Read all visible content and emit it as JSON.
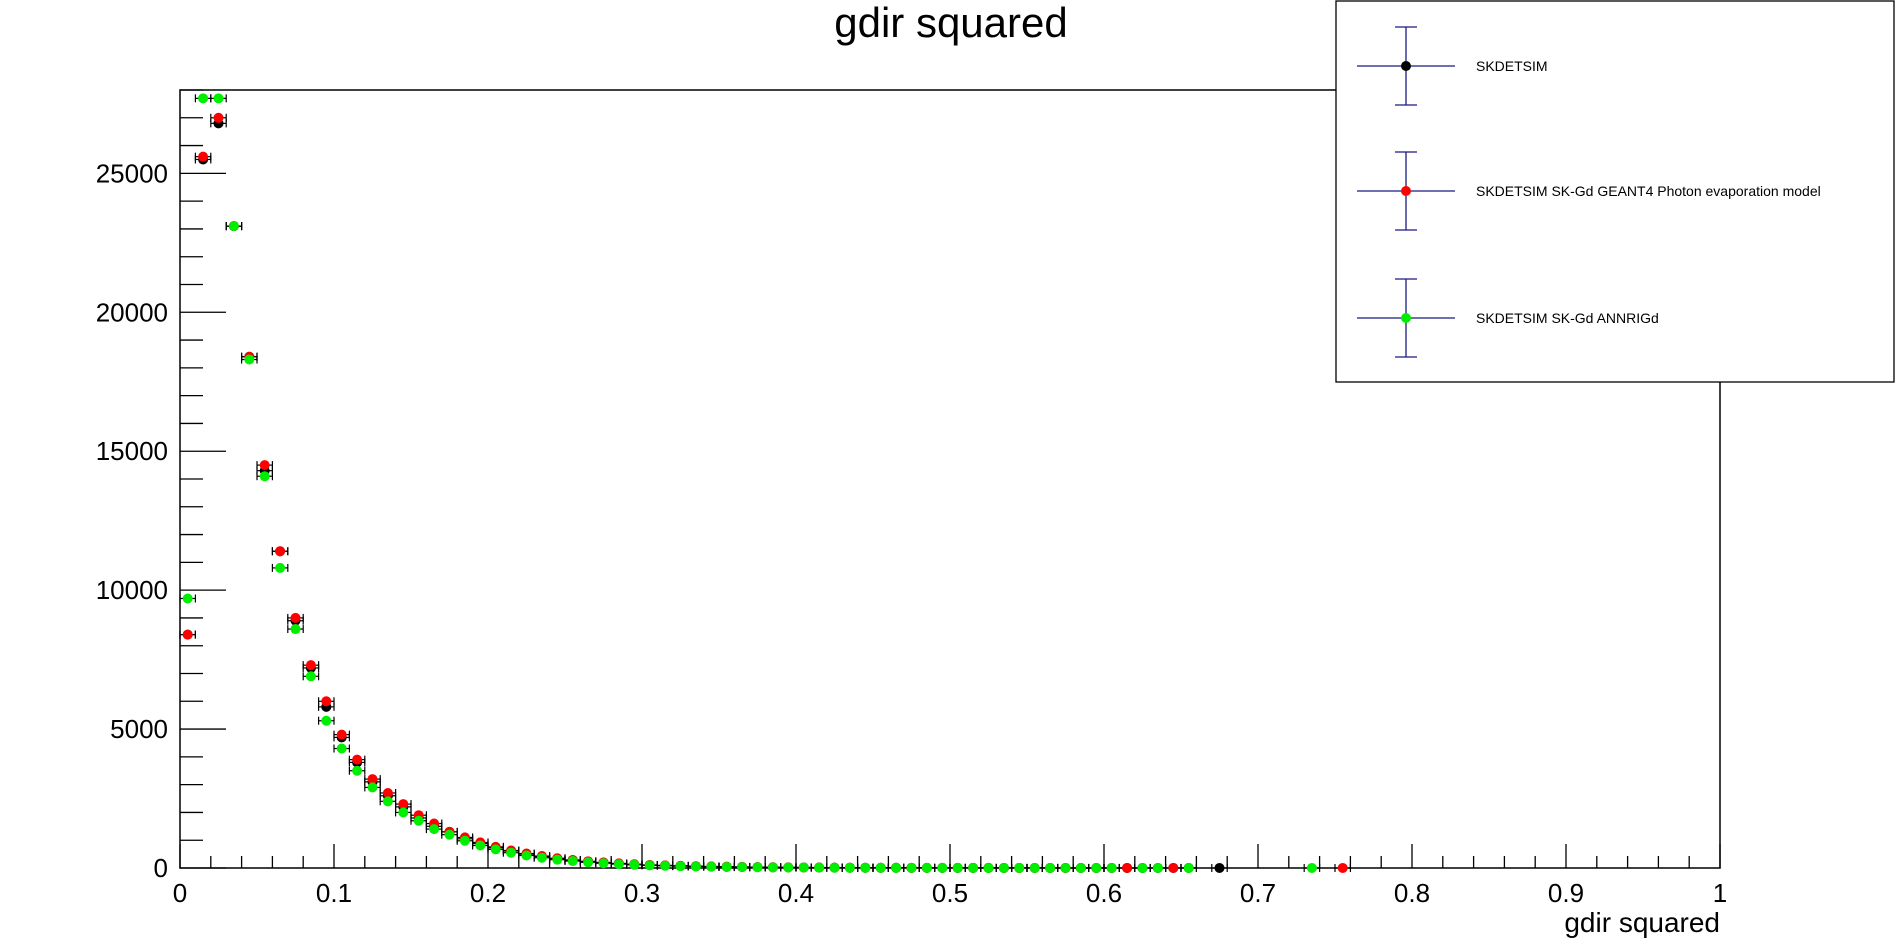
{
  "chart_data": {
    "type": "scatter",
    "title": "gdir squared",
    "xlabel": "gdir squared",
    "ylabel": "",
    "xlim": [
      0,
      1
    ],
    "ylim": [
      0,
      28000
    ],
    "x_ticks": [
      0,
      0.1,
      0.2,
      0.3,
      0.4,
      0.5,
      0.6,
      0.7,
      0.8,
      0.9,
      1
    ],
    "x_tick_labels": [
      "0",
      "0.1",
      "0.2",
      "0.3",
      "0.4",
      "0.5",
      "0.6",
      "0.7",
      "0.8",
      "0.9",
      "1"
    ],
    "y_ticks": [
      0,
      5000,
      10000,
      15000,
      20000,
      25000
    ],
    "y_tick_labels": [
      "0",
      "5000",
      "10000",
      "15000",
      "20000",
      "25000"
    ],
    "grid": false,
    "legend_position": "top-right",
    "bin_width": 0.01,
    "series": [
      {
        "name": "SKDETSIM",
        "color": "#000000",
        "x": [
          0.005,
          0.015,
          0.025,
          0.035,
          0.045,
          0.055,
          0.065,
          0.075,
          0.085,
          0.095,
          0.105,
          0.115,
          0.125,
          0.135,
          0.145,
          0.155,
          0.165,
          0.175,
          0.185,
          0.195,
          0.205,
          0.215,
          0.225,
          0.235,
          0.245,
          0.255,
          0.265,
          0.275,
          0.285,
          0.295,
          0.305,
          0.315,
          0.325,
          0.335,
          0.345,
          0.355,
          0.365,
          0.375,
          0.385,
          0.395,
          0.405,
          0.415,
          0.425,
          0.435,
          0.445,
          0.455,
          0.465,
          0.475,
          0.485,
          0.495,
          0.505,
          0.515,
          0.525,
          0.535,
          0.545,
          0.555,
          0.565,
          0.575,
          0.585,
          0.595,
          0.605,
          0.615,
          0.625,
          0.635,
          0.645,
          0.655,
          0.675
        ],
        "y": [
          8400,
          25500,
          26800,
          23100,
          18400,
          14300,
          11400,
          8900,
          7200,
          5800,
          4700,
          3800,
          3100,
          2600,
          2200,
          1800,
          1500,
          1300,
          1050,
          880,
          730,
          610,
          500,
          410,
          340,
          280,
          235,
          195,
          160,
          130,
          105,
          90,
          75,
          62,
          52,
          44,
          37,
          31,
          26,
          22,
          19,
          16,
          13,
          11,
          9,
          8,
          7,
          6,
          5,
          4,
          3,
          3,
          3,
          2,
          2,
          2,
          2,
          1,
          1,
          1,
          1,
          1,
          1,
          1,
          1,
          1,
          1
        ]
      },
      {
        "name": "SKDETSIM SK-Gd GEANT4 Photon evaporation model",
        "color": "#ff0000",
        "x": [
          0.005,
          0.015,
          0.025,
          0.035,
          0.045,
          0.055,
          0.065,
          0.075,
          0.085,
          0.095,
          0.105,
          0.115,
          0.125,
          0.135,
          0.145,
          0.155,
          0.165,
          0.175,
          0.185,
          0.195,
          0.205,
          0.215,
          0.225,
          0.235,
          0.245,
          0.255,
          0.265,
          0.275,
          0.285,
          0.295,
          0.305,
          0.315,
          0.325,
          0.335,
          0.345,
          0.355,
          0.365,
          0.375,
          0.385,
          0.395,
          0.405,
          0.415,
          0.425,
          0.435,
          0.445,
          0.455,
          0.465,
          0.475,
          0.485,
          0.495,
          0.505,
          0.515,
          0.525,
          0.535,
          0.545,
          0.555,
          0.565,
          0.575,
          0.585,
          0.595,
          0.605,
          0.615,
          0.645,
          0.755
        ],
        "y": [
          8400,
          25600,
          27000,
          23100,
          18400,
          14500,
          11400,
          9000,
          7300,
          6000,
          4800,
          3900,
          3200,
          2700,
          2300,
          1900,
          1600,
          1300,
          1100,
          920,
          760,
          630,
          520,
          430,
          350,
          290,
          240,
          200,
          165,
          135,
          110,
          93,
          78,
          65,
          54,
          46,
          38,
          32,
          27,
          23,
          19,
          16,
          14,
          12,
          10,
          8,
          7,
          6,
          5,
          4,
          4,
          3,
          3,
          2,
          2,
          2,
          2,
          1,
          1,
          1,
          1,
          1,
          1,
          1
        ]
      },
      {
        "name": "SKDETSIM SK-Gd ANNRIGd",
        "color": "#00ee00",
        "x": [
          0.005,
          0.015,
          0.025,
          0.035,
          0.045,
          0.055,
          0.065,
          0.075,
          0.085,
          0.095,
          0.105,
          0.115,
          0.125,
          0.135,
          0.145,
          0.155,
          0.165,
          0.175,
          0.185,
          0.195,
          0.205,
          0.215,
          0.225,
          0.235,
          0.245,
          0.255,
          0.265,
          0.275,
          0.285,
          0.295,
          0.305,
          0.315,
          0.325,
          0.335,
          0.345,
          0.355,
          0.365,
          0.375,
          0.385,
          0.395,
          0.405,
          0.415,
          0.425,
          0.435,
          0.445,
          0.455,
          0.465,
          0.475,
          0.485,
          0.495,
          0.505,
          0.515,
          0.525,
          0.535,
          0.545,
          0.555,
          0.565,
          0.575,
          0.585,
          0.595,
          0.605,
          0.625,
          0.635,
          0.655,
          0.735
        ],
        "y": [
          9700,
          27700,
          27700,
          23100,
          18300,
          14100,
          10800,
          8600,
          6900,
          5300,
          4300,
          3500,
          2900,
          2400,
          2000,
          1700,
          1400,
          1200,
          980,
          810,
          670,
          550,
          450,
          370,
          300,
          250,
          205,
          170,
          140,
          115,
          95,
          80,
          66,
          55,
          46,
          38,
          32,
          27,
          22,
          19,
          16,
          13,
          11,
          9,
          8,
          7,
          6,
          5,
          4,
          3,
          3,
          3,
          2,
          2,
          2,
          2,
          1,
          1,
          1,
          1,
          1,
          1,
          1,
          1,
          1
        ]
      }
    ]
  }
}
